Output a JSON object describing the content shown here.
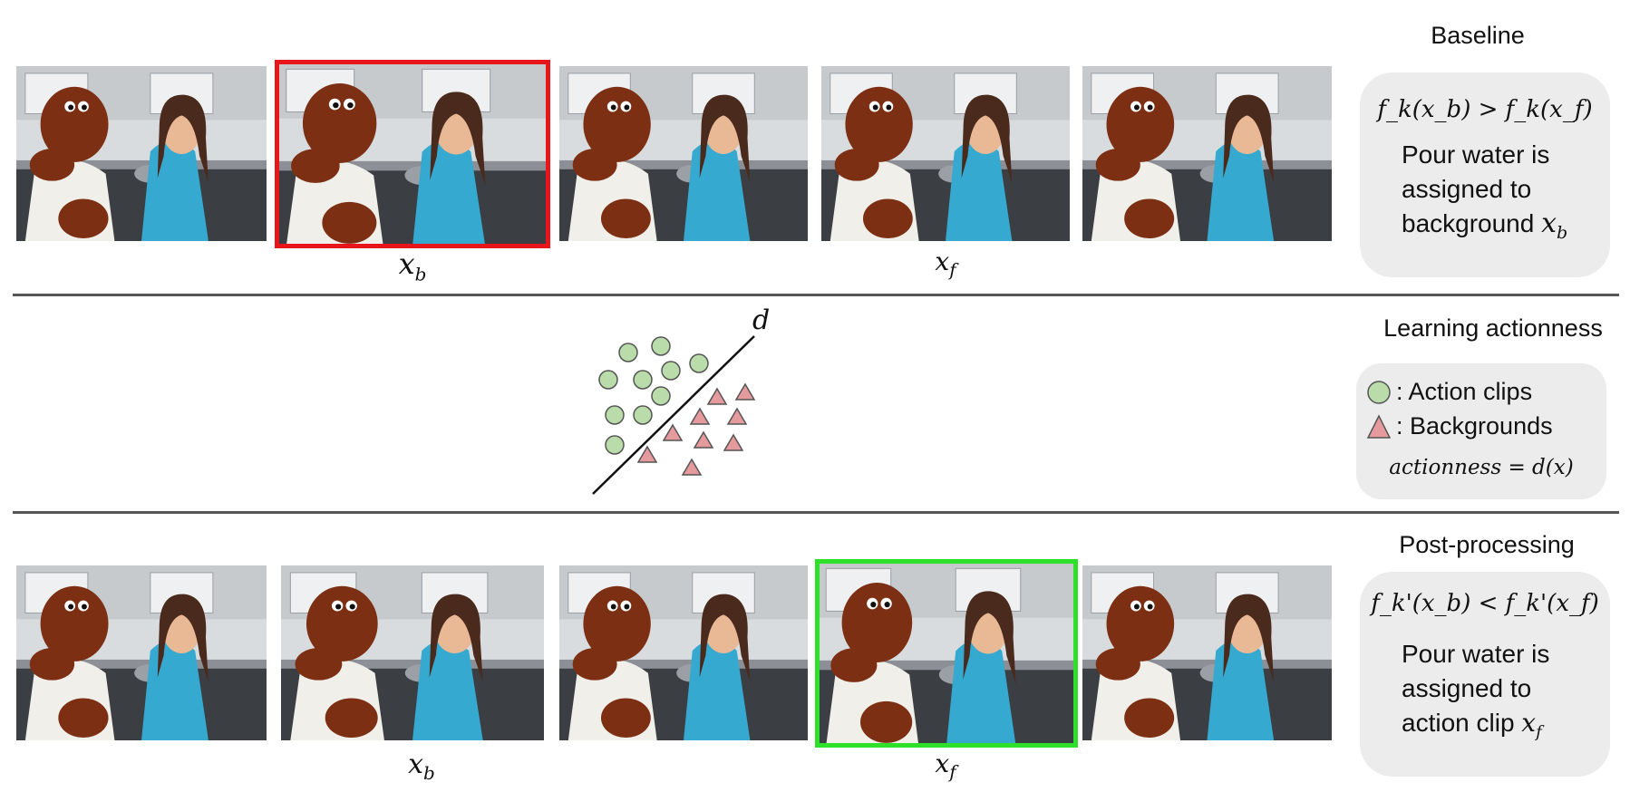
{
  "top_section": {
    "title": "Baseline",
    "label_xb": "x",
    "label_xb_sub": "b",
    "label_xf": "x",
    "label_xf_sub": "f",
    "formula": "f_k(x_b) > f_k(x_f)",
    "text_line1": "Pour water is",
    "text_line2": "assigned to",
    "text_line3": "background",
    "text_var": "x",
    "text_var_sub": "b",
    "highlight_color": "#e8161b"
  },
  "middle_section": {
    "title": "Learning actionness",
    "boundary_label": "d",
    "legend_action": ": Action clips",
    "legend_background": ": Backgrounds",
    "formula": "actionness = d(x)",
    "action_color": "#b9dcaa",
    "background_color": "#e59a9e"
  },
  "bottom_section": {
    "title": "Post-processing",
    "label_xb": "x",
    "label_xb_sub": "b",
    "label_xf": "x",
    "label_xf_sub": "f",
    "formula": "f_k'(x_b) < f_k'(x_f)",
    "text_line1": "Pour water is",
    "text_line2": "assigned to",
    "text_line3": "action clip",
    "text_var": "x",
    "text_var_sub": "f",
    "highlight_color": "#2fe02a"
  }
}
